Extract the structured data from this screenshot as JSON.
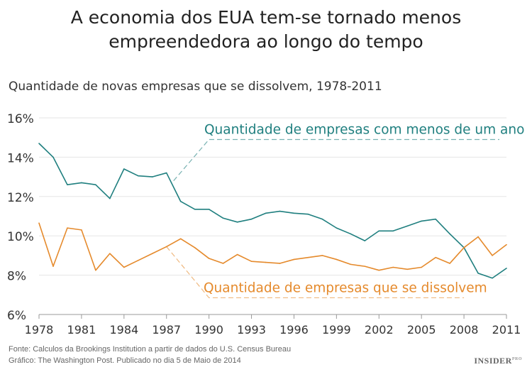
{
  "chart_data": {
    "type": "line",
    "title": "A economia dos EUA tem-se tornado menos empreendedora ao longo do tempo",
    "title_lines": [
      "A economia dos EUA tem-se tornado menos",
      "empreendedora ao longo do tempo"
    ],
    "subtitle": "Quantidade de novas empresas que se dissolvem, 1978-2011",
    "x": [
      1978,
      1979,
      1980,
      1981,
      1982,
      1983,
      1984,
      1985,
      1986,
      1987,
      1988,
      1989,
      1990,
      1991,
      1992,
      1993,
      1994,
      1995,
      1996,
      1997,
      1998,
      1999,
      2000,
      2001,
      2002,
      2003,
      2004,
      2005,
      2006,
      2007,
      2008,
      2009,
      2010,
      2011
    ],
    "xticks": [
      "1978",
      "1981",
      "1984",
      "1987",
      "1990",
      "1993",
      "1996",
      "1999",
      "2002",
      "2005",
      "2008",
      "2011"
    ],
    "yticks": [
      "6%",
      "8%",
      "10%",
      "12%",
      "14%",
      "16%"
    ],
    "ylim": [
      6,
      16
    ],
    "xlim": [
      1978,
      2011
    ],
    "grid": true,
    "series": [
      {
        "name": "Quantidade de empresas com menos de um ano",
        "color": "#1f7f7f",
        "values": [
          14.7,
          14.0,
          12.6,
          12.7,
          12.6,
          11.9,
          13.4,
          13.05,
          13.0,
          13.2,
          11.75,
          11.35,
          11.35,
          10.9,
          10.7,
          10.85,
          11.15,
          11.25,
          11.15,
          11.1,
          10.85,
          10.4,
          10.1,
          9.75,
          10.25,
          10.25,
          10.5,
          10.75,
          10.85,
          10.1,
          9.4,
          8.1,
          7.85,
          8.35
        ]
      },
      {
        "name": "Quantidade de empresas que se dissolvem",
        "color": "#e58a2c",
        "values": [
          10.65,
          8.45,
          10.4,
          10.3,
          8.25,
          9.1,
          8.4,
          8.75,
          9.1,
          9.45,
          9.85,
          9.4,
          8.85,
          8.6,
          9.05,
          8.7,
          8.65,
          8.6,
          8.8,
          8.9,
          9.0,
          8.8,
          8.55,
          8.45,
          8.25,
          8.4,
          8.3,
          8.4,
          8.9,
          8.6,
          9.4,
          9.95,
          9.0,
          9.55
        ]
      }
    ]
  },
  "footer": {
    "source": "Fonte: Calculos da Brookings Institution a partir de dados do U.S. Census Bureau",
    "credit": "Gráfico: The Washington Post. Publicado no dia 5 de Maio de 2014",
    "logo": "INSIDER",
    "logo_sup": "PRO"
  }
}
